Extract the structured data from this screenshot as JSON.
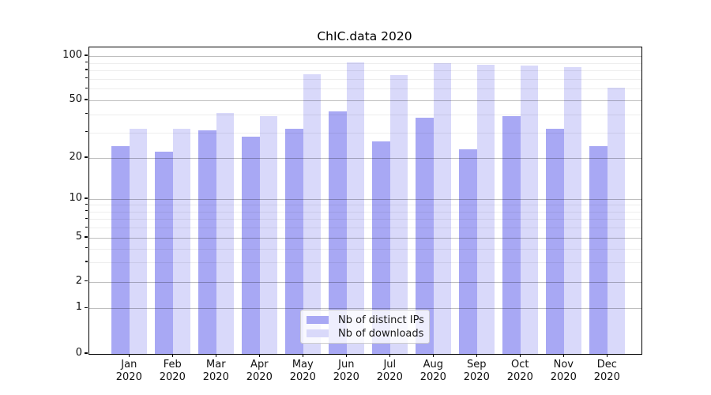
{
  "title": "ChIC.data 2020",
  "chart_data": {
    "type": "bar",
    "title": "ChIC.data 2020",
    "categories": [
      "Jan 2020",
      "Feb 2020",
      "Mar 2020",
      "Apr 2020",
      "May 2020",
      "Jun 2020",
      "Jul 2020",
      "Aug 2020",
      "Sep 2020",
      "Oct 2020",
      "Nov 2020",
      "Dec 2020"
    ],
    "series": [
      {
        "key": "ips",
        "name": "Nb of distinct IPs",
        "color": "#a8a8f4",
        "values": [
          24,
          22,
          31,
          28,
          32,
          42,
          26,
          38,
          23,
          39,
          32,
          24
        ]
      },
      {
        "key": "downloads",
        "name": "Nb of downloads",
        "color": "#d9d9fa",
        "values": [
          32,
          32,
          41,
          39,
          75,
          91,
          74,
          89,
          87,
          86,
          84,
          61
        ]
      }
    ],
    "yscale": "symlog",
    "ylim": [
      0,
      120
    ],
    "yticks": [
      0,
      1,
      2,
      5,
      10,
      20,
      50,
      100
    ],
    "minor_yticks": [
      3,
      4,
      6,
      7,
      8,
      9,
      30,
      40,
      60,
      70,
      80,
      90
    ],
    "grid": true,
    "legend_position": "lower center"
  }
}
